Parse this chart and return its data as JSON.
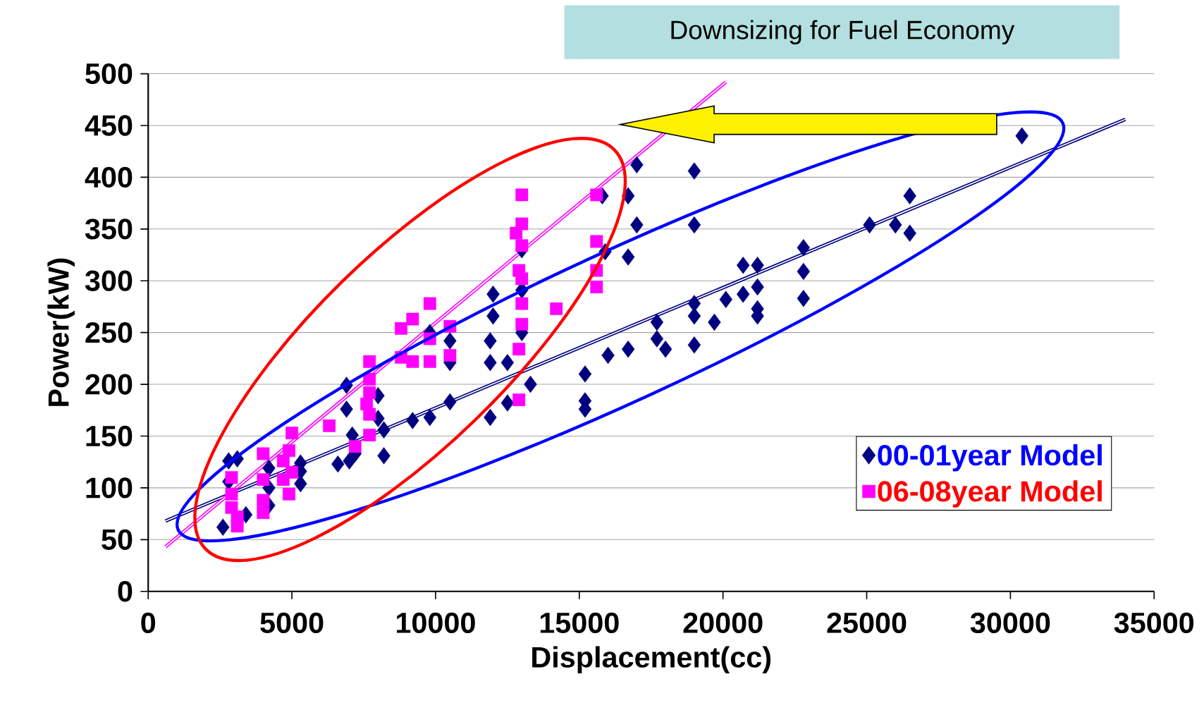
{
  "chart_data": {
    "type": "scatter",
    "title": "Downsizing for Fuel Economy",
    "xlabel": "Displacement(cc)",
    "ylabel": "Power(kW)",
    "xlim": [
      0,
      35000
    ],
    "xticks": [
      0,
      5000,
      10000,
      15000,
      20000,
      25000,
      30000,
      35000
    ],
    "ylim": [
      0,
      500
    ],
    "yticks": [
      0,
      50,
      100,
      150,
      200,
      250,
      300,
      350,
      400,
      450,
      500
    ],
    "grid": "y",
    "legend": "bottom right",
    "series": [
      {
        "name": "00-01year Model",
        "color": "#000080",
        "marker": "diamond",
        "x": [
          30400,
          26500,
          26500,
          26000,
          25100,
          22800,
          22800,
          22800,
          21200,
          21200,
          20700,
          20700,
          21200,
          21200,
          20100,
          19700,
          19000,
          19000,
          19000,
          19000,
          19000,
          18000,
          17700,
          17700,
          17000,
          17000,
          16700,
          16700,
          16700,
          16000,
          15900,
          15800,
          15200,
          15200,
          15200,
          13300,
          13000,
          13000,
          13000,
          12500,
          12500,
          12000,
          12000,
          11900,
          11900,
          11900,
          10500,
          10500,
          10500,
          9800,
          9800,
          9200,
          8200,
          8200,
          8000,
          8000,
          6900,
          6900,
          7100,
          6600,
          7000,
          7200,
          5300,
          5300,
          5300,
          4200,
          4200,
          4200,
          3100,
          2800,
          2600,
          2800,
          3400
        ],
        "values": [
          440,
          382,
          346,
          354,
          354,
          332,
          309,
          283,
          294,
          315,
          315,
          287,
          273,
          266,
          282,
          260,
          406,
          354,
          278,
          266,
          238,
          234,
          260,
          244,
          412,
          354,
          382,
          323,
          234,
          228,
          328,
          382,
          210,
          184,
          176,
          200,
          330,
          291,
          250,
          182,
          221,
          287,
          266,
          242,
          221,
          168,
          183,
          242,
          221,
          168,
          250,
          165,
          131,
          156,
          167,
          189,
          199,
          176,
          151,
          123,
          126,
          133,
          124,
          104,
          116,
          119,
          83,
          100,
          128,
          126,
          62,
          106,
          74
        ]
      },
      {
        "name": "06-08year Model",
        "color": "#ff00ff",
        "marker": "square",
        "x": [
          13000,
          13000,
          12800,
          13000,
          12900,
          13000,
          13000,
          13000,
          12900,
          12900,
          14200,
          15600,
          15600,
          15600,
          15600,
          10500,
          10500,
          9800,
          9200,
          8800,
          8800,
          9200,
          9800,
          9800,
          7700,
          7700,
          7700,
          7700,
          7600,
          7700,
          7200,
          6300,
          5000,
          4900,
          4700,
          5000,
          4700,
          4900,
          4000,
          4000,
          4000,
          4000,
          2900,
          2900,
          2900,
          3100,
          3100
        ],
        "values": [
          383,
          355,
          346,
          334,
          310,
          302,
          278,
          258,
          234,
          185,
          273,
          383,
          338,
          310,
          294,
          256,
          228,
          278,
          263,
          254,
          226,
          222,
          222,
          244,
          222,
          205,
          192,
          171,
          181,
          151,
          140,
          160,
          153,
          136,
          126,
          115,
          108,
          94,
          133,
          108,
          88,
          76,
          110,
          94,
          81,
          63,
          72
        ]
      },
      {
        "type": "line",
        "color": "#000080",
        "x": [
          600,
          34000
        ],
        "values": [
          68,
          456
        ]
      },
      {
        "type": "line",
        "color": "#ff00ff",
        "x": [
          600,
          20100
        ],
        "values": [
          43,
          492
        ]
      }
    ]
  }
}
